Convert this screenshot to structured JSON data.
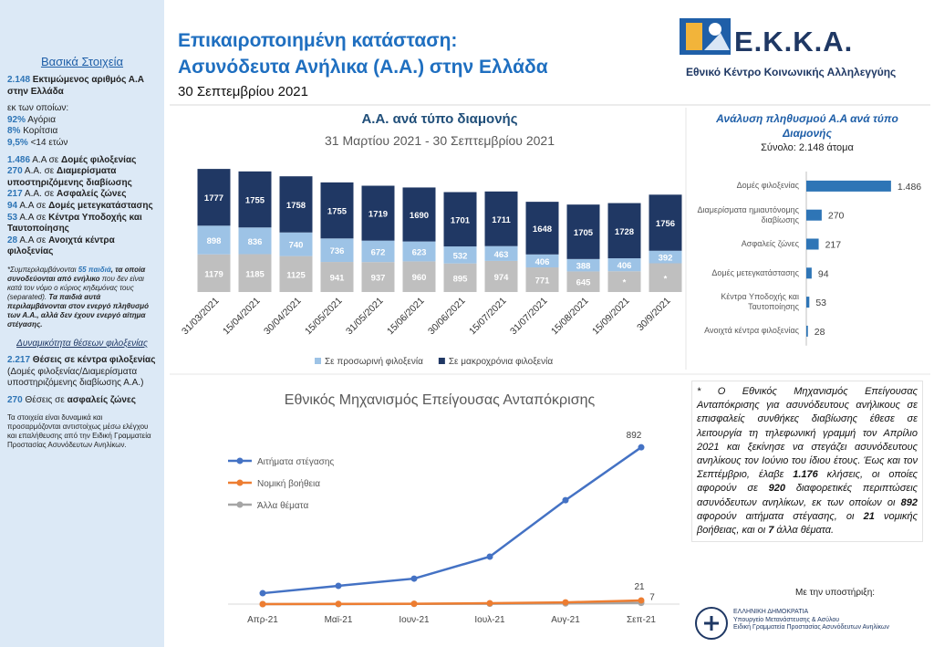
{
  "header": {
    "title_1": "Επικαιροποιημένη κατάσταση:",
    "title_2": "Ασυνόδευτα Ανήλικα (Α.Α.) στην Ελλάδα",
    "date": "30 Σεπτεμβρίου 2021"
  },
  "logo": {
    "name": "Ε.Κ.Κ.Α.",
    "subtitle": "Εθνικό Κέντρο Κοινωνικής Αλληλεγγύης"
  },
  "sidebar": {
    "items": [
      {
        "heading": "Βασικά Στοιχεία"
      },
      {
        "runs": [
          {
            "text": "2.148",
            "accent": true
          },
          {
            "text": " Εκτιμώμενος αριθμός Α.Α στην Ελλάδα",
            "bold": true
          }
        ]
      },
      {
        "runs": [
          {
            "text": "εκ των οποίων:"
          }
        ]
      },
      {
        "runs": [
          {
            "text": "92%",
            "accent": true
          },
          {
            "text": " Αγόρια"
          }
        ],
        "tight": true
      },
      {
        "runs": [
          {
            "text": "8%",
            "accent": true
          },
          {
            "text": " Κορίτσια"
          }
        ],
        "tight": true
      },
      {
        "runs": [
          {
            "text": "9,5%",
            "accent": true
          },
          {
            "text": " <14 ετών"
          }
        ],
        "tight": true
      },
      {
        "runs": [
          {
            "text": "1.486",
            "accent": true
          },
          {
            "text": " Α.Α σε "
          },
          {
            "text": "Δομές φιλοξενίας",
            "bold": true
          }
        ]
      },
      {
        "runs": [
          {
            "text": "270",
            "accent": true
          },
          {
            "text": " Α.Α. σε "
          },
          {
            "text": "Διαμερίσματα υποστηριζόμενης διαβίωσης",
            "bold": true
          }
        ],
        "tight": true
      },
      {
        "runs": [
          {
            "text": "217",
            "accent": true
          },
          {
            "text": " Α.Α. σε "
          },
          {
            "text": "Ασφαλείς ζώνες",
            "bold": true
          }
        ],
        "tight": true
      },
      {
        "runs": [
          {
            "text": "94",
            "accent": true
          },
          {
            "text": " Α.Α σε "
          },
          {
            "text": "Δομές μετεγκατάστασης",
            "bold": true
          }
        ],
        "tight": true
      },
      {
        "runs": [
          {
            "text": "53",
            "accent": true
          },
          {
            "text": " Α.Α σε "
          },
          {
            "text": "Κέντρα Υποδοχής και Ταυτοποίησης",
            "bold": true
          }
        ],
        "tight": true
      },
      {
        "runs": [
          {
            "text": "28",
            "accent": true
          },
          {
            "text": " Α.Α σε "
          },
          {
            "text": "Ανοιχτά κέντρα φιλοξενίας",
            "bold": true
          }
        ],
        "tight": true
      },
      {
        "runs": [
          {
            "text": "*Συμπεριλαμβάνονται ",
            "italic": true
          },
          {
            "text": "55 παιδιά",
            "italic": true,
            "accent": true
          },
          {
            "text": ", τα οποία συνοδεύονται από ενήλικο",
            "italic": true,
            "bold": true
          },
          {
            "text": " που δεν είναι κατά τον νόμο ο κύριος κηδεμόνας τους (separated). ",
            "italic": true
          },
          {
            "text": "Τα παιδιά αυτά περιλαμβάνονται στον ενεργό πληθυσμό των Α.Α., αλλά δεν έχουν ενεργό αίτημα στέγασης.",
            "italic": true,
            "bold": true
          }
        ],
        "small": true
      },
      {
        "heading": "Δυναμικότητα θέσεων φιλοξενίας",
        "italic": true
      },
      {
        "runs": [
          {
            "text": "2.217",
            "accent": true
          },
          {
            "text": " Θέσεις σε κέντρα φιλοξενίας",
            "bold": true
          },
          {
            "text": " (Δομές φιλοξενίας/Διαμερίσματα υποστηριζόμενης διαβίωσης Α.Α.)"
          }
        ]
      },
      {
        "runs": [
          {
            "text": "270",
            "accent": true
          },
          {
            "text": " Θέσεις σε "
          },
          {
            "text": "ασφαλείς ζώνες",
            "bold": true
          }
        ]
      },
      {
        "runs": [
          {
            "text": "Τα στοιχεία είναι δυναμικά και προσαρμόζονται αντιστοίχως μέσω ελέγχου και επαλήθευσης από την Ειδική Γραμματεία Προστασίας Ασυνόδευτων Ανηλίκων."
          }
        ],
        "small": true
      }
    ]
  },
  "chart_data": [
    {
      "type": "stacked_bar",
      "title": "Α.Α. ανά τύπο διαμονής",
      "subtitle": "31 Μαρτίου 2021 - 30 Σεπτεμβρίου 2021",
      "categories": [
        "31/03/2021",
        "15/04/2021",
        "30/04/2021",
        "15/05/2021",
        "31/05/2021",
        "15/06/2021",
        "30/06/2021",
        "15/07/2021",
        "31/07/2021",
        "15/08/2021",
        "15/09/2021",
        "30/9/2021"
      ],
      "ylim": [
        0,
        4000
      ],
      "series": [
        {
          "color": "#bfbfbf",
          "values": [
            1179,
            1185,
            1125,
            941,
            937,
            960,
            895,
            974,
            771,
            645,
            650,
            900
          ],
          "value_labels": [
            "1179",
            "1185",
            "1125",
            "941",
            "937",
            "960",
            "895",
            "974",
            "771",
            "645",
            "*",
            "*"
          ]
        },
        {
          "name": "Σε προσωρινή φιλοξενία",
          "color": "#9dc3e6",
          "values": [
            898,
            836,
            740,
            736,
            672,
            623,
            532,
            463,
            406,
            388,
            406,
            392
          ]
        },
        {
          "name": "Σε μακροχρόνια φιλοξενία",
          "color": "#203864",
          "values": [
            1777,
            1755,
            1758,
            1755,
            1719,
            1690,
            1701,
            1711,
            1648,
            1705,
            1728,
            1756
          ]
        }
      ]
    },
    {
      "type": "hbar",
      "title": "Ανάλυση πληθυσμού Α.Α ανά τύπο Διαμονής",
      "subtitle": "Σύνολο: 2.148 άτομα",
      "categories": [
        "Δομές φιλοξενίας",
        "Διαμερίσματα ημιαυτόνομης διαβίωσης",
        "Ασφαλείς ζώνες",
        "Δομές μετεγκατάστασης",
        "Κέντρα Υποδοχής και Ταυτοποίησης",
        "Ανοιχτά κέντρα φιλοξενίας"
      ],
      "values": [
        1486,
        270,
        217,
        94,
        53,
        28
      ],
      "value_labels": [
        "1.486",
        "270",
        "217",
        "94",
        "53",
        "28"
      ],
      "color": "#2e75b6",
      "xlim": [
        0,
        1600
      ]
    },
    {
      "type": "line",
      "title": "Εθνικός Μηχανισμός Επείγουσας Ανταπόκρισης",
      "categories": [
        "Απρ-21",
        "Μαϊ-21",
        "Ιουν-21",
        "Ιουλ-21",
        "Αυγ-21",
        "Σεπ-21"
      ],
      "ylim": [
        0,
        950
      ],
      "data_labels": "last",
      "legend": "upper-left",
      "series": [
        {
          "name": "Αιτήματα στέγασης",
          "color": "#4472c4",
          "values": [
            62,
            104,
            145,
            270,
            591,
            892
          ]
        },
        {
          "name": "Νομική βοήθεια",
          "color": "#ed7d31",
          "values": [
            0,
            1,
            2,
            5,
            10,
            21
          ]
        },
        {
          "name": "Άλλα θέματα",
          "color": "#a5a5a5",
          "values": [
            0,
            0,
            1,
            2,
            4,
            7
          ]
        }
      ]
    }
  ],
  "note": {
    "runs": [
      {
        "text": "* Ο Εθνικός Μηχανισμός Επείγουσας Ανταπόκρισης για ασυνόδευτους ανήλικους σε επισφαλείς συνθήκες διαβίωσης έθεσε σε λειτουργία τη τηλεφωνική γραμμή τον Απρίλιο 2021 και ξεκίνησε να στεγάζει ασυνόδευτους ανηλίκους τον Ιούνιο του ίδιου έτους. Έως και τον Σεπτέμβριο, έλαβε "
      },
      {
        "text": "1.176",
        "bold": true
      },
      {
        "text": " κλήσεις, οι οποίες αφορούν σε "
      },
      {
        "text": "920",
        "bold": true
      },
      {
        "text": " διαφορετικές περιπτώσεις ασυνόδευτων ανηλίκων, εκ των οποίων οι "
      },
      {
        "text": "892",
        "bold": true
      },
      {
        "text": " αφορούν αιτήματα στέγασης, οι "
      },
      {
        "text": "21",
        "bold": true
      },
      {
        "text": " νομικής βοήθειας, και οι "
      },
      {
        "text": "7",
        "bold": true
      },
      {
        "text": " άλλα θέματα."
      }
    ]
  },
  "support": {
    "label": "Με την υποστήριξη:",
    "lines": [
      "ΕΛΛΗΝΙΚΗ ΔΗΜΟΚΡΑΤΙΑ",
      "Υπουργείο Μετανάστευσης & Ασύλου",
      "Ειδική Γραμματεία Προστασίας Ασυνόδευτων Ανηλίκων"
    ]
  }
}
